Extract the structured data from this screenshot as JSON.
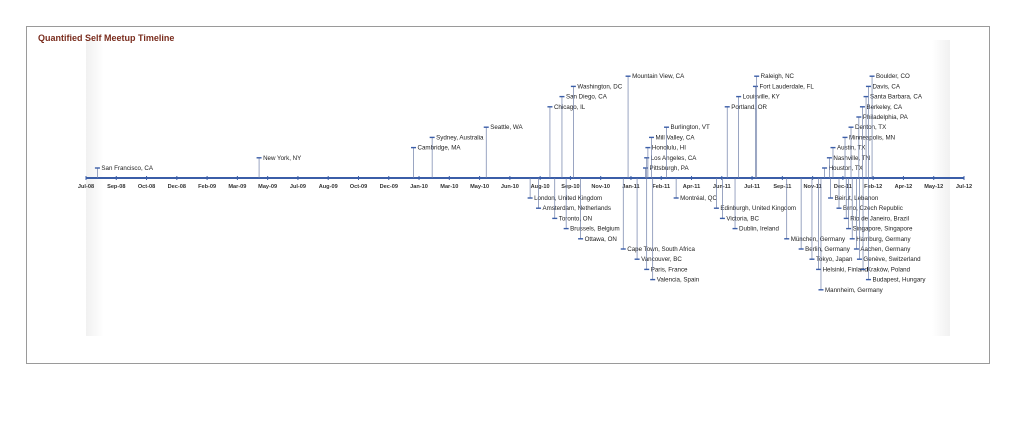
{
  "chart_data": {
    "type": "timeline",
    "title": "Quantified Self Meetup Timeline",
    "axis": {
      "ticks": [
        "Jul-08",
        "Sep-08",
        "Oct-08",
        "Dec-08",
        "Feb-09",
        "Mar-09",
        "May-09",
        "Jul-09",
        "Aug-09",
        "Oct-09",
        "Dec-09",
        "Jan-10",
        "Mar-10",
        "May-10",
        "Jun-10",
        "Aug-10",
        "Sep-10",
        "Nov-10",
        "Jan-11",
        "Feb-11",
        "Apr-11",
        "Jun-11",
        "Jul-11",
        "Sep-11",
        "Nov-11",
        "Dec-11",
        "Feb-12",
        "Apr-12",
        "May-12",
        "Jul-12"
      ],
      "color": "#3b5ea8"
    },
    "events_above": [
      {
        "label": "San Francisco, CA",
        "date": "2008-07-20",
        "level": 1
      },
      {
        "label": "New York, NY",
        "date": "2009-04-15",
        "level": 2
      },
      {
        "label": "Cambridge, MA",
        "date": "2009-12-28",
        "level": 3
      },
      {
        "label": "Sydney, Australia",
        "date": "2010-01-28",
        "level": 4
      },
      {
        "label": "Seattle, WA",
        "date": "2010-04-28",
        "level": 5
      },
      {
        "label": "Chicago, IL",
        "date": "2010-08-12",
        "level": 7
      },
      {
        "label": "San Diego, CA",
        "date": "2010-09-01",
        "level": 8
      },
      {
        "label": "Washington, DC",
        "date": "2010-09-20",
        "level": 9
      },
      {
        "label": "Mountain View, CA",
        "date": "2010-12-20",
        "level": 10
      },
      {
        "label": "Pittsburgh, PA",
        "date": "2011-01-18",
        "level": 1
      },
      {
        "label": "Los Angeles, CA",
        "date": "2011-01-20",
        "level": 2
      },
      {
        "label": "Honolulu, HI",
        "date": "2011-01-22",
        "level": 3
      },
      {
        "label": "Mill Valley, CA",
        "date": "2011-01-28",
        "level": 4
      },
      {
        "label": "Burlington, VT",
        "date": "2011-02-22",
        "level": 5
      },
      {
        "label": "Portland, OR",
        "date": "2011-06-03",
        "level": 7
      },
      {
        "label": "Louisville, KY",
        "date": "2011-06-22",
        "level": 8
      },
      {
        "label": "Fort Lauderdale, FL",
        "date": "2011-07-20",
        "level": 9
      },
      {
        "label": "Raleigh, NC",
        "date": "2011-07-22",
        "level": 10
      },
      {
        "label": "Houston, TX",
        "date": "2011-11-12",
        "level": 1
      },
      {
        "label": "Nashville, TN",
        "date": "2011-11-20",
        "level": 2
      },
      {
        "label": "Austin, TX",
        "date": "2011-11-26",
        "level": 3
      },
      {
        "label": "Minneapolis, MN",
        "date": "2011-12-16",
        "level": 4
      },
      {
        "label": "Denton, TX",
        "date": "2011-12-26",
        "level": 5
      },
      {
        "label": "Philadelphia, PA",
        "date": "2012-01-08",
        "level": 6
      },
      {
        "label": "Berkeley, CA",
        "date": "2012-01-14",
        "level": 7
      },
      {
        "label": "Santa Barbara, CA",
        "date": "2012-01-20",
        "level": 8
      },
      {
        "label": "Davis, CA",
        "date": "2012-01-24",
        "level": 9
      },
      {
        "label": "Boulder, CO",
        "date": "2012-01-30",
        "level": 10
      }
    ],
    "events_below": [
      {
        "label": "London, United Kingdom",
        "date": "2010-07-10",
        "level": 1
      },
      {
        "label": "Amsterdam, Netherlands",
        "date": "2010-07-24",
        "level": 2
      },
      {
        "label": "Toronto, ON",
        "date": "2010-08-20",
        "level": 3
      },
      {
        "label": "Brussels, Belgium",
        "date": "2010-09-08",
        "level": 4
      },
      {
        "label": "Ottawa, ON",
        "date": "2010-10-02",
        "level": 5
      },
      {
        "label": "Cape Town, South Africa",
        "date": "2010-12-12",
        "level": 6
      },
      {
        "label": "Vancouver, BC",
        "date": "2011-01-04",
        "level": 7
      },
      {
        "label": "Paris, France",
        "date": "2011-01-20",
        "level": 8
      },
      {
        "label": "Valencia, Spain",
        "date": "2011-01-30",
        "level": 9
      },
      {
        "label": "Montréal, QC",
        "date": "2011-03-10",
        "level": 1
      },
      {
        "label": "Edinburgh, United Kingdom",
        "date": "2011-05-16",
        "level": 2
      },
      {
        "label": "Victoria, BC",
        "date": "2011-05-26",
        "level": 3
      },
      {
        "label": "Dublin, Ireland",
        "date": "2011-06-16",
        "level": 4
      },
      {
        "label": "München, Germany",
        "date": "2011-09-10",
        "level": 5
      },
      {
        "label": "Berlin, Germany",
        "date": "2011-10-04",
        "level": 6
      },
      {
        "label": "Tokyo, Japan",
        "date": "2011-10-22",
        "level": 7
      },
      {
        "label": "Helsinki, Finland",
        "date": "2011-11-02",
        "level": 8
      },
      {
        "label": "Mannheim, Germany",
        "date": "2011-11-06",
        "level": 10
      },
      {
        "label": "Beirut, Lebanon",
        "date": "2011-11-22",
        "level": 1
      },
      {
        "label": "Brno, Czech Republic",
        "date": "2011-12-06",
        "level": 2
      },
      {
        "label": "Rio de Janeiro, Brazil",
        "date": "2011-12-18",
        "level": 3
      },
      {
        "label": "Singapore, Singapore",
        "date": "2011-12-22",
        "level": 4
      },
      {
        "label": "Hamburg, Germany",
        "date": "2011-12-28",
        "level": 5
      },
      {
        "label": "Aachen, Germany",
        "date": "2012-01-04",
        "level": 6
      },
      {
        "label": "Genève, Switzerland",
        "date": "2012-01-09",
        "level": 7
      },
      {
        "label": "Kraków, Poland",
        "date": "2012-01-15",
        "level": 8
      },
      {
        "label": "Budapest, Hungary",
        "date": "2012-01-24",
        "level": 9
      }
    ]
  }
}
